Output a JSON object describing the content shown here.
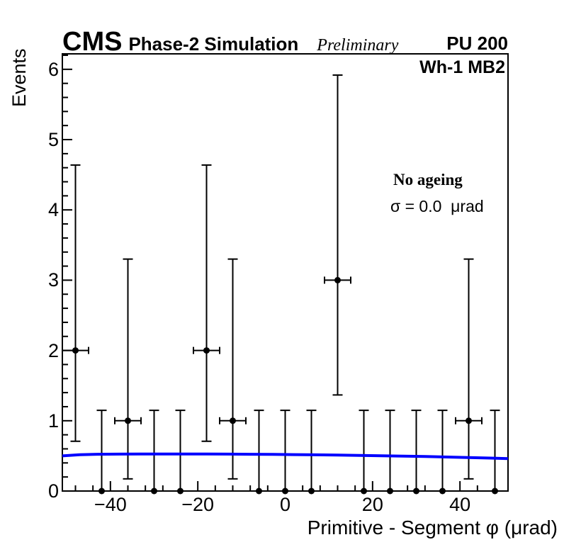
{
  "header": {
    "experiment": "CMS",
    "subtitle": "Phase-2 Simulation",
    "preliminary": "Preliminary",
    "pileup": "PU 200"
  },
  "plot": {
    "region_label": "Wh-1 MB2",
    "annotations": {
      "ageing": "No ageing",
      "sigma": "σ = 0.0  μrad"
    }
  },
  "colors": {
    "fit_line": "#0000ff",
    "marker": "#000000",
    "frame": "#000000",
    "background": "#ffffff"
  },
  "chart_data": {
    "type": "scatter",
    "title": "",
    "xlabel": "Primitive - Segment φ (μrad)",
    "ylabel": "Events",
    "xlim": [
      -51,
      51
    ],
    "ylim": [
      0,
      6.22
    ],
    "grid": false,
    "legend_position": "none",
    "x_major_ticks": [
      {
        "v": -40,
        "label": "−40"
      },
      {
        "v": -20,
        "label": "−20"
      },
      {
        "v": 0,
        "label": "0"
      },
      {
        "v": 20,
        "label": "20"
      },
      {
        "v": 40,
        "label": "40"
      }
    ],
    "x_minor_step": 4,
    "y_major_ticks": [
      {
        "v": 0,
        "label": "0"
      },
      {
        "v": 1,
        "label": "1"
      },
      {
        "v": 2,
        "label": "2"
      },
      {
        "v": 3,
        "label": "3"
      },
      {
        "v": 4,
        "label": "4"
      },
      {
        "v": 5,
        "label": "5"
      },
      {
        "v": 6,
        "label": "6"
      }
    ],
    "y_minor_step": 0.2,
    "bin_half_width": 3,
    "series": [
      {
        "name": "data-points",
        "marker": "filled-circle",
        "color": "#000000",
        "points": [
          {
            "x": -48,
            "y": 2,
            "eyl": 1.292,
            "eyh": 2.638
          },
          {
            "x": -42,
            "y": 0,
            "eyl": 0,
            "eyh": 1.148
          },
          {
            "x": -36,
            "y": 1,
            "eyl": 0.827,
            "eyh": 2.3
          },
          {
            "x": -30,
            "y": 0,
            "eyl": 0,
            "eyh": 1.148
          },
          {
            "x": -24,
            "y": 0,
            "eyl": 0,
            "eyh": 1.148
          },
          {
            "x": -18,
            "y": 2,
            "eyl": 1.292,
            "eyh": 2.638
          },
          {
            "x": -12,
            "y": 1,
            "eyl": 0.827,
            "eyh": 2.3
          },
          {
            "x": -6,
            "y": 0,
            "eyl": 0,
            "eyh": 1.148
          },
          {
            "x": 0,
            "y": 0,
            "eyl": 0,
            "eyh": 1.148
          },
          {
            "x": 6,
            "y": 0,
            "eyl": 0,
            "eyh": 1.148
          },
          {
            "x": 12,
            "y": 3,
            "eyl": 1.633,
            "eyh": 2.918
          },
          {
            "x": 18,
            "y": 0,
            "eyl": 0,
            "eyh": 1.148
          },
          {
            "x": 24,
            "y": 0,
            "eyl": 0,
            "eyh": 1.148
          },
          {
            "x": 30,
            "y": 0,
            "eyl": 0,
            "eyh": 1.148
          },
          {
            "x": 36,
            "y": 0,
            "eyl": 0,
            "eyh": 1.148
          },
          {
            "x": 42,
            "y": 1,
            "eyl": 0.827,
            "eyh": 2.3
          },
          {
            "x": 48,
            "y": 0,
            "eyl": 0,
            "eyh": 1.148
          }
        ]
      }
    ],
    "fit": {
      "name": "background-fit",
      "color": "#0000ff",
      "line_width": 4,
      "points": [
        [
          -51,
          0.5
        ],
        [
          -47,
          0.517
        ],
        [
          -43,
          0.523
        ],
        [
          -38,
          0.525
        ],
        [
          -33,
          0.527
        ],
        [
          -28,
          0.527
        ],
        [
          -23,
          0.527
        ],
        [
          -18,
          0.527
        ],
        [
          -13,
          0.525
        ],
        [
          -8,
          0.523
        ],
        [
          -3,
          0.521
        ],
        [
          2,
          0.518
        ],
        [
          7,
          0.515
        ],
        [
          12,
          0.511
        ],
        [
          17,
          0.507
        ],
        [
          22,
          0.502
        ],
        [
          27,
          0.497
        ],
        [
          32,
          0.491
        ],
        [
          37,
          0.484
        ],
        [
          42,
          0.477
        ],
        [
          47,
          0.469
        ],
        [
          51,
          0.462
        ]
      ]
    }
  }
}
